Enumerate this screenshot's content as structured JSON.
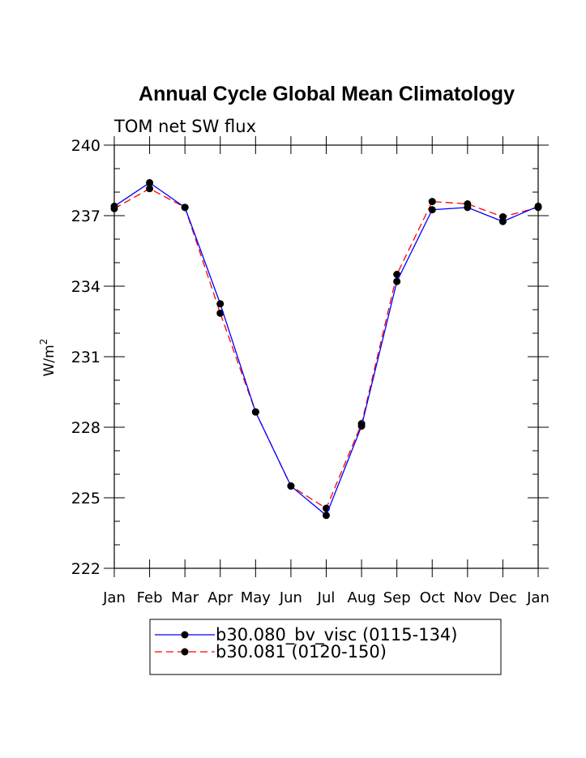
{
  "chart_data": {
    "type": "line",
    "title": "Annual Cycle Global Mean Climatology",
    "subtitle": "TOM net SW flux",
    "ylabel_base": "W/m",
    "ylabel_sup": "2",
    "xlabel": "",
    "categories": [
      "Jan",
      "Feb",
      "Mar",
      "Apr",
      "May",
      "Jun",
      "Jul",
      "Aug",
      "Sep",
      "Oct",
      "Nov",
      "Dec",
      "Jan"
    ],
    "ylim": [
      222,
      240
    ],
    "yticks": [
      222,
      225,
      228,
      231,
      234,
      237,
      240
    ],
    "grid": false,
    "legend_position": "bottom",
    "series": [
      {
        "name": "b30.080_bv_visc (0115-134)",
        "color": "#0000ff",
        "dash": "solid",
        "values": [
          237.4,
          238.4,
          237.35,
          233.25,
          228.65,
          225.5,
          224.25,
          228.05,
          234.2,
          237.25,
          237.35,
          236.75,
          237.4
        ]
      },
      {
        "name": "b30.081 (0120-150)",
        "color": "#ff0000",
        "dash": "dashed",
        "values": [
          237.3,
          238.15,
          237.35,
          232.85,
          228.65,
          225.5,
          224.55,
          228.15,
          234.5,
          237.6,
          237.5,
          236.95,
          237.35
        ]
      }
    ]
  }
}
